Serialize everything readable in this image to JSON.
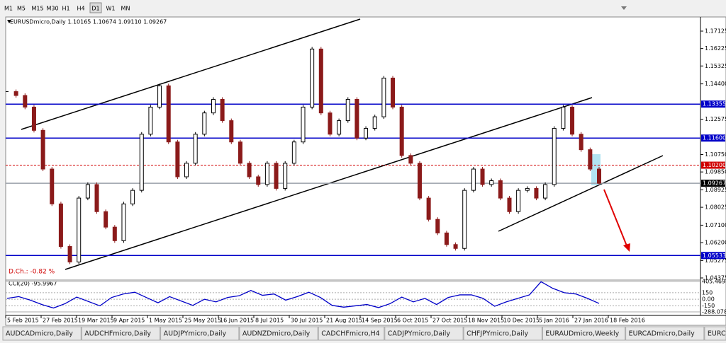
{
  "toolbar": {
    "timeframes": [
      "M1",
      "M5",
      "M15",
      "M30",
      "H1",
      "H4",
      "D1",
      "W1",
      "MN"
    ]
  },
  "chart_data": {
    "type": "candlestick",
    "title": "EURUSDmicro,Daily  1.10165 1.10674 1.09110 1.09267",
    "daily_change": "D.Ch.: -0.82 %",
    "up_color": "#000000",
    "down_color": "#8b1a1a",
    "closes": [
      1.14,
      1.138,
      1.132,
      1.12,
      1.1,
      1.082,
      1.06,
      1.052,
      1.085,
      1.092,
      1.078,
      1.07,
      1.063,
      1.082,
      1.089,
      1.118,
      1.132,
      1.143,
      1.114,
      1.096,
      1.103,
      1.118,
      1.129,
      1.136,
      1.125,
      1.114,
      1.103,
      1.096,
      1.092,
      1.103,
      1.09,
      1.103,
      1.114,
      1.132,
      1.162,
      1.129,
      1.118,
      1.125,
      1.136,
      1.116,
      1.121,
      1.127,
      1.147,
      1.132,
      1.107,
      1.103,
      1.085,
      1.074,
      1.067,
      1.061,
      1.059,
      1.089,
      1.1,
      1.092,
      1.094,
      1.085,
      1.078,
      1.089,
      1.09,
      1.085,
      1.092,
      1.121,
      1.132,
      1.118,
      1.11,
      1.1,
      1.09267
    ],
    "ylim": [
      1.04302,
      1.17783
    ],
    "yticks": [
      {
        "value": 1.17125,
        "label": "1.17125"
      },
      {
        "value": 1.16225,
        "label": "1.16225"
      },
      {
        "value": 1.15325,
        "label": "1.15325"
      },
      {
        "value": 1.144,
        "label": "1.14400"
      },
      {
        "value": 1.12575,
        "label": "1.12575"
      },
      {
        "value": 1.1075,
        "label": "1.10750"
      },
      {
        "value": 1.0985,
        "label": "1.09850"
      },
      {
        "value": 1.08925,
        "label": "1.08925"
      },
      {
        "value": 1.08025,
        "label": "1.08025"
      },
      {
        "value": 1.071,
        "label": "1.07100"
      },
      {
        "value": 1.062,
        "label": "1.06200"
      },
      {
        "value": 1.05275,
        "label": "1.05275"
      },
      {
        "value": 1.04375,
        "label": "1.04375"
      }
    ],
    "levels": [
      {
        "value": 1.13355,
        "label": "1.13355",
        "color": "#0000c8",
        "style": "solid"
      },
      {
        "value": 1.116,
        "label": "1.11600",
        "color": "#0000c8",
        "style": "solid"
      },
      {
        "value": 1.102,
        "label": "1.10200",
        "color": "#d00000",
        "style": "dashed"
      },
      {
        "value": 1.09267,
        "label": "1.09267",
        "color": "#9aa0aa",
        "style": "solid"
      },
      {
        "value": 1.05533,
        "label": "1.05533",
        "color": "#0000c8",
        "style": "solid"
      }
    ],
    "x_tick_labels": [
      "5 Feb 2015",
      "27 Feb 2015",
      "19 Mar 2015",
      "9 Apr 2015",
      "1 May 2015",
      "25 May 2015",
      "16 Jun 2015",
      "8 Jul 2015",
      "30 Jul 2015",
      "21 Aug 2015",
      "14 Sep 2015",
      "6 Oct 2015",
      "27 Oct 2015",
      "18 Nov 2015",
      "10 Dec 2015",
      "5 Jan 2016",
      "27 Jan 2016",
      "18 Feb 2016"
    ],
    "indicator": {
      "title": "CCI(20) -95.9967",
      "color": "#0000c8",
      "values": [
        20,
        60,
        -20,
        -120,
        -200,
        -100,
        50,
        -50,
        -150,
        40,
        120,
        160,
        40,
        -80,
        60,
        -40,
        -140,
        0,
        -60,
        40,
        80,
        200,
        90,
        120,
        -20,
        60,
        160,
        40,
        -140,
        -180,
        -150,
        -120,
        -190,
        -100,
        50,
        -60,
        20,
        -120,
        40,
        100,
        100,
        20,
        -160,
        -60,
        20,
        100,
        400,
        250,
        150,
        120,
        20,
        -96
      ],
      "ylim": [
        -288.0787,
        405.4698
      ],
      "yticks": [
        405.4698,
        150,
        {
          "value": 0,
          "label": "0.00"
        },
        -150,
        -288.0787
      ]
    }
  },
  "tabs": [
    "AUDCADmicro,Daily",
    "AUDCHFmicro,Daily",
    "AUDJPYmicro,Daily",
    "AUDNZDmicro,Daily",
    "CADCHFmicro,H4",
    "CADJPYmicro,Daily",
    "CHFJPYmicro,Daily",
    "EURAUDmicro,Weekly",
    "EURCADmicro,Daily",
    "EURCHFmicro,Daily",
    "EUR"
  ]
}
